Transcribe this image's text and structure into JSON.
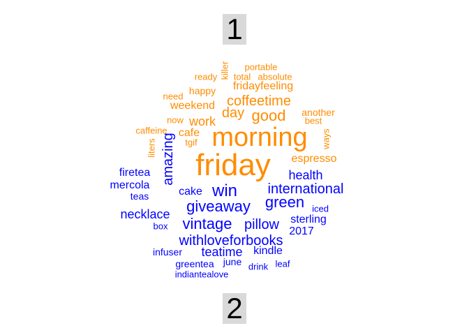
{
  "labels": {
    "top": "1",
    "bottom": "2"
  },
  "colors": {
    "group1": "#ff8c00",
    "group2": "#0000ff"
  },
  "words": [
    {
      "text": "friday",
      "group": 1
    },
    {
      "text": "morning",
      "group": 1
    },
    {
      "text": "good",
      "group": 1
    },
    {
      "text": "day",
      "group": 1
    },
    {
      "text": "coffeetime",
      "group": 1
    },
    {
      "text": "fridayfeeling",
      "group": 1
    },
    {
      "text": "total",
      "group": 1
    },
    {
      "text": "absolute",
      "group": 1
    },
    {
      "text": "portable",
      "group": 1
    },
    {
      "text": "ready",
      "group": 1
    },
    {
      "text": "killer",
      "group": 1
    },
    {
      "text": "happy",
      "group": 1
    },
    {
      "text": "need",
      "group": 1
    },
    {
      "text": "weekend",
      "group": 1
    },
    {
      "text": "now",
      "group": 1
    },
    {
      "text": "work",
      "group": 1
    },
    {
      "text": "caffeine",
      "group": 1
    },
    {
      "text": "cafe",
      "group": 1
    },
    {
      "text": "tgif",
      "group": 1
    },
    {
      "text": "liters",
      "group": 1
    },
    {
      "text": "another",
      "group": 1
    },
    {
      "text": "best",
      "group": 1
    },
    {
      "text": "ways",
      "group": 1
    },
    {
      "text": "espresso",
      "group": 1
    },
    {
      "text": "amazing",
      "group": 2
    },
    {
      "text": "health",
      "group": 2
    },
    {
      "text": "international",
      "group": 2
    },
    {
      "text": "firetea",
      "group": 2
    },
    {
      "text": "mercola",
      "group": 2
    },
    {
      "text": "teas",
      "group": 2
    },
    {
      "text": "cake",
      "group": 2
    },
    {
      "text": "win",
      "group": 2
    },
    {
      "text": "giveaway",
      "group": 2
    },
    {
      "text": "green",
      "group": 2
    },
    {
      "text": "iced",
      "group": 2
    },
    {
      "text": "necklace",
      "group": 2
    },
    {
      "text": "box",
      "group": 2
    },
    {
      "text": "vintage",
      "group": 2
    },
    {
      "text": "pillow",
      "group": 2
    },
    {
      "text": "sterling",
      "group": 2
    },
    {
      "text": "2017",
      "group": 2
    },
    {
      "text": "withloveforbooks",
      "group": 2
    },
    {
      "text": "infuser",
      "group": 2
    },
    {
      "text": "teatime",
      "group": 2
    },
    {
      "text": "kindle",
      "group": 2
    },
    {
      "text": "greentea",
      "group": 2
    },
    {
      "text": "june",
      "group": 2
    },
    {
      "text": "drink",
      "group": 2
    },
    {
      "text": "leaf",
      "group": 2
    },
    {
      "text": "indiantealove",
      "group": 2
    }
  ]
}
